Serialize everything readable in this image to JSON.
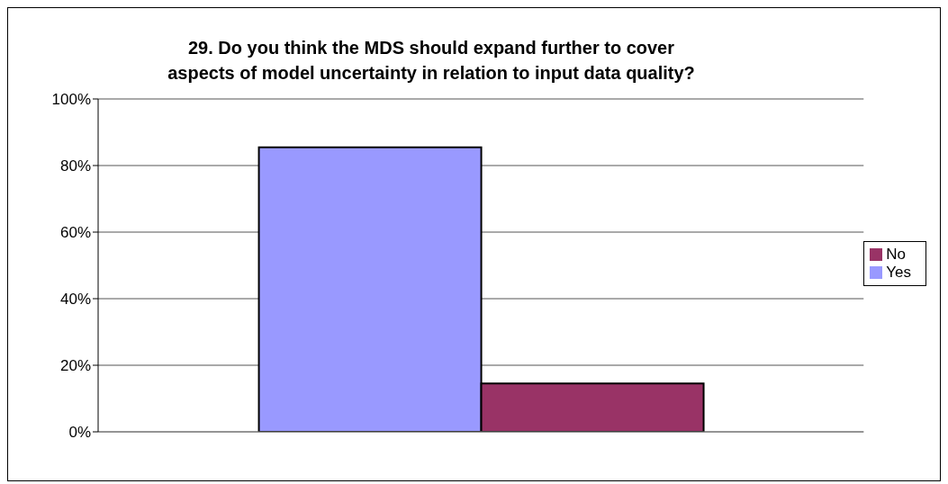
{
  "chart_data": {
    "type": "bar",
    "title": "29. Do you think the MDS should expand further to cover aspects of model uncertainty in relation to input data quality?",
    "categories": [
      null
    ],
    "series": [
      {
        "name": "Yes",
        "color": "#9999ff",
        "values": [
          85.5
        ]
      },
      {
        "name": "No",
        "color": "#993366",
        "values": [
          14.5
        ]
      }
    ],
    "ylim": [
      0,
      100
    ],
    "yticks": [
      {
        "value": 0,
        "label": "0%"
      },
      {
        "value": 20,
        "label": "20%"
      },
      {
        "value": 40,
        "label": "40%"
      },
      {
        "value": 60,
        "label": "60%"
      },
      {
        "value": 80,
        "label": "80%"
      },
      {
        "value": 100,
        "label": "100%"
      }
    ],
    "grid": "y",
    "legend": "right"
  }
}
